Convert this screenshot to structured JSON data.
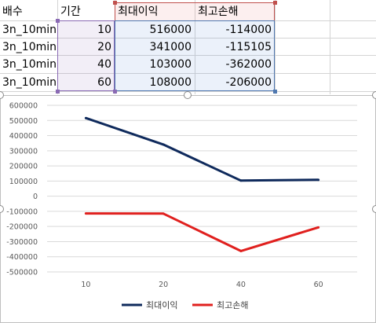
{
  "sheet": {
    "headers": [
      "배수",
      "기간",
      "최대이익",
      "최고손해"
    ],
    "rows": [
      [
        "3n_10min",
        "10",
        "516000",
        "-114000"
      ],
      [
        "3n_10min",
        "20",
        "341000",
        "-115105"
      ],
      [
        "3n_10min",
        "40",
        "103000",
        "-362000"
      ],
      [
        "3n_10min",
        "60",
        "108000",
        "-206000"
      ]
    ],
    "range_colors": {
      "purple": "#8a6ab4",
      "red": "#c0504d",
      "blue": "#4f78b0"
    }
  },
  "chart_data": {
    "type": "line",
    "categories": [
      "10",
      "20",
      "40",
      "60"
    ],
    "series": [
      {
        "name": "최대이익",
        "values": [
          516000,
          341000,
          103000,
          108000
        ],
        "color": "#0f2a5c"
      },
      {
        "name": "최고손해",
        "values": [
          -114000,
          -115105,
          -362000,
          -206000
        ],
        "color": "#e0201e"
      }
    ],
    "ylim": [
      -500000,
      600000
    ],
    "yticks": [
      "600000",
      "500000",
      "400000",
      "300000",
      "200000",
      "100000",
      "0",
      "-100000",
      "-200000",
      "-300000",
      "-400000",
      "-500000"
    ],
    "grid": true,
    "legend": "bottom"
  }
}
